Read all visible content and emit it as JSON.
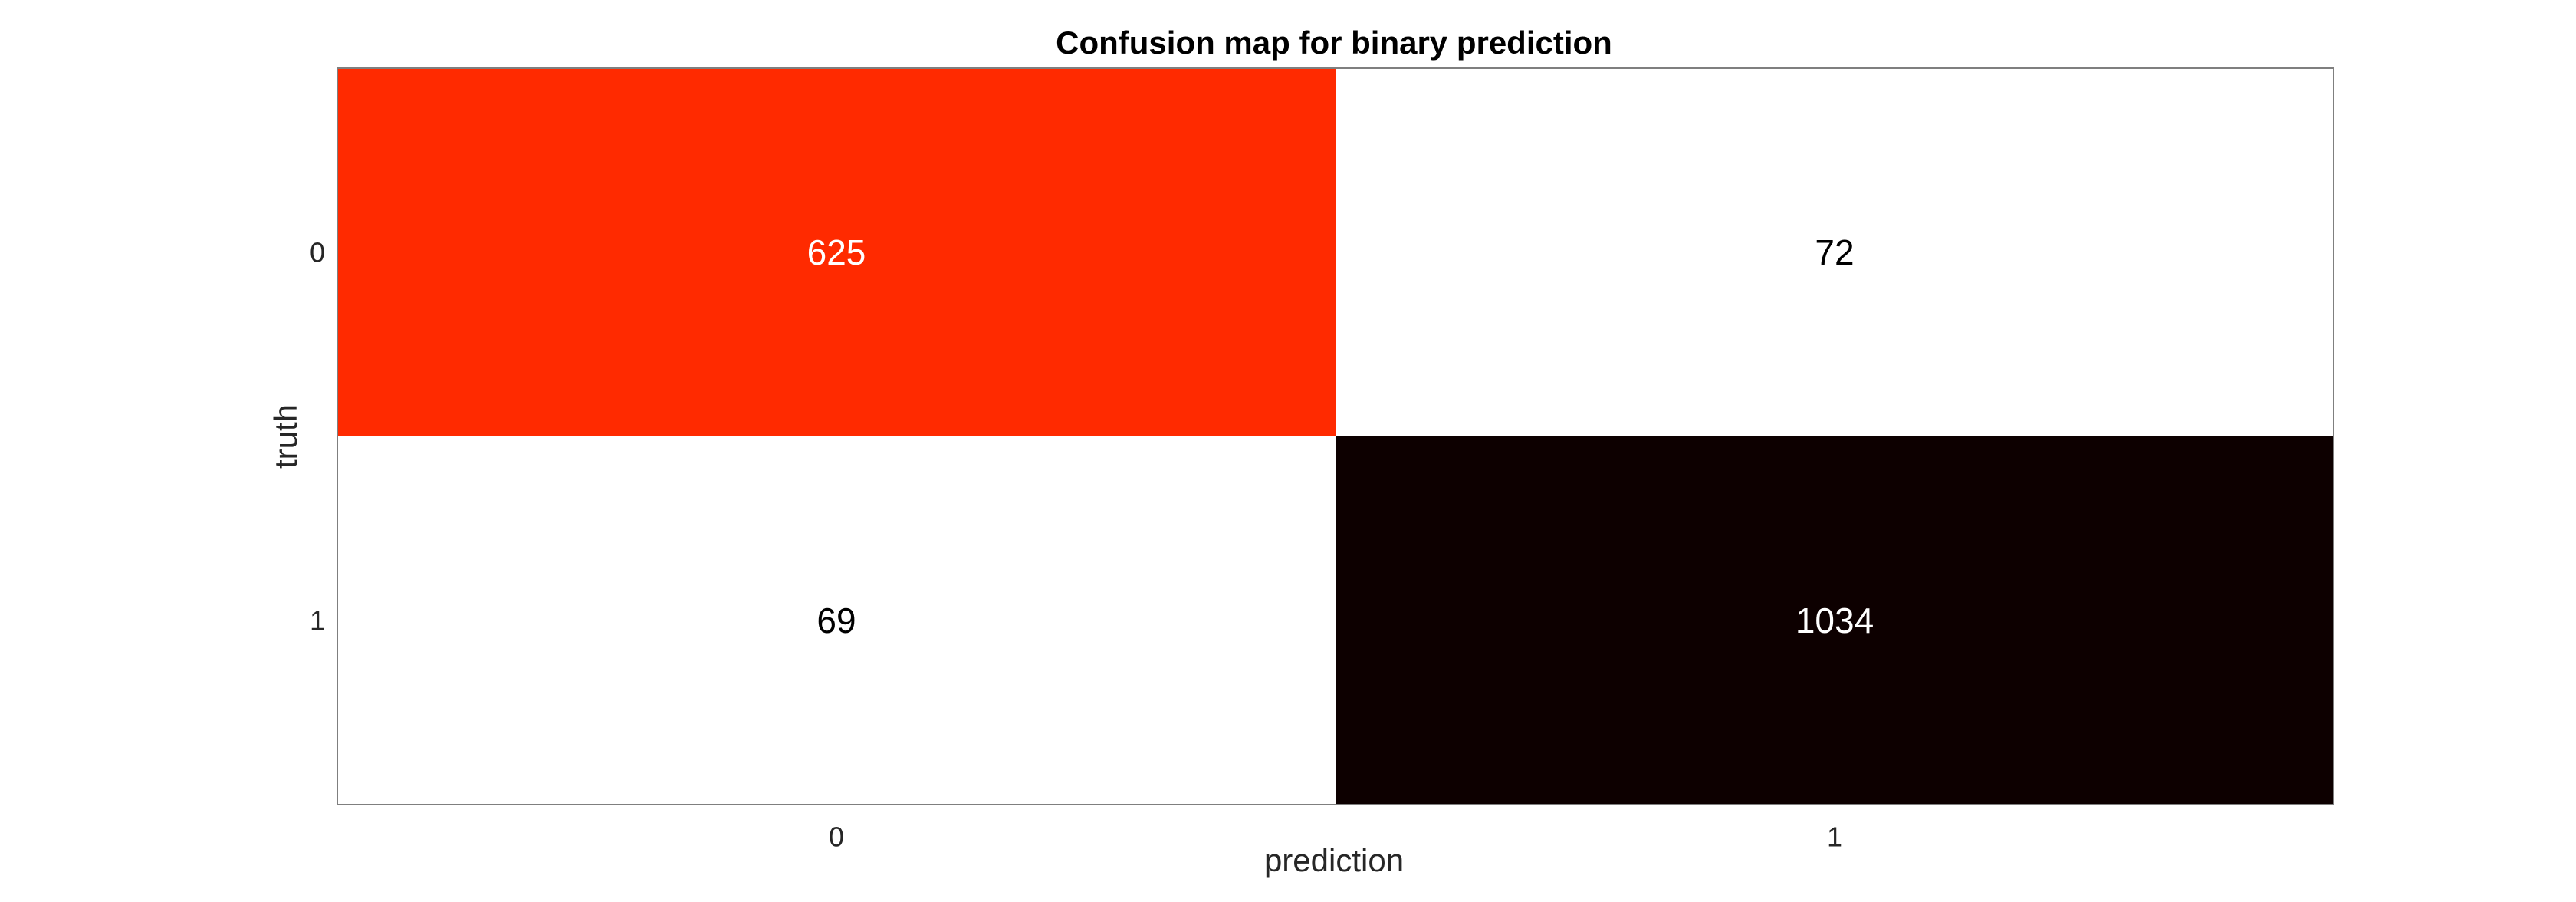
{
  "chart_data": {
    "type": "heatmap",
    "title": "Confusion map for binary prediction",
    "xlabel": "prediction",
    "ylabel": "truth",
    "x_categories": [
      "0",
      "1"
    ],
    "y_categories": [
      "0",
      "1"
    ],
    "values": [
      [
        625,
        72
      ],
      [
        69,
        1034
      ]
    ],
    "cell_colors": [
      [
        "#ff2a00",
        "#ffffff"
      ],
      [
        "#ffffff",
        "#0d0000"
      ]
    ],
    "label_colors": [
      [
        "#ffffff",
        "#000000"
      ],
      [
        "#000000",
        "#ffffff"
      ]
    ]
  }
}
